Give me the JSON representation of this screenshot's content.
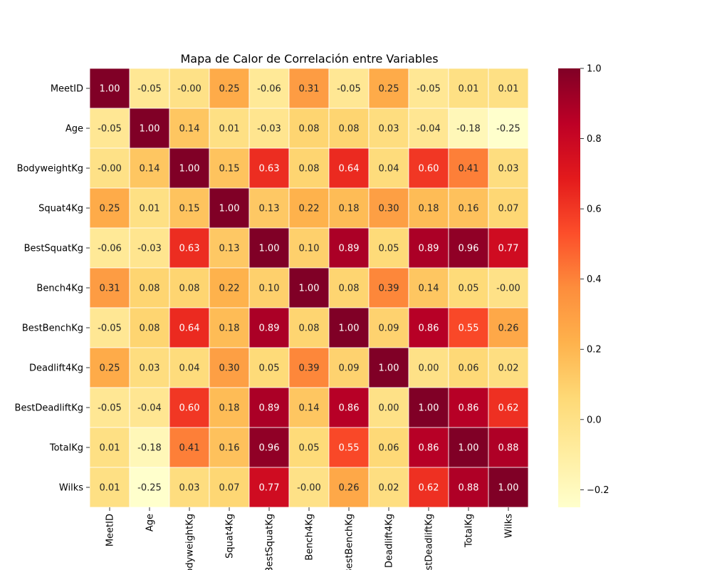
{
  "chart_data": {
    "type": "heatmap",
    "title": "Mapa de Calor de Correlación entre Variables",
    "xlabel": "",
    "ylabel": "",
    "row_labels": [
      "MeetID",
      "Age",
      "BodyweightKg",
      "Squat4Kg",
      "BestSquatKg",
      "Bench4Kg",
      "BestBenchKg",
      "Deadlift4Kg",
      "BestDeadliftKg",
      "TotalKg",
      "Wilks"
    ],
    "col_labels": [
      "MeetID",
      "Age",
      "BodyweightKg",
      "Squat4Kg",
      "BestSquatKg",
      "Bench4Kg",
      "BestBenchKg",
      "Deadlift4Kg",
      "BestDeadliftKg",
      "TotalKg",
      "Wilks"
    ],
    "values": [
      [
        1.0,
        -0.05,
        -0.0,
        0.25,
        -0.06,
        0.31,
        -0.05,
        0.25,
        -0.05,
        0.01,
        0.01
      ],
      [
        -0.05,
        1.0,
        0.14,
        0.01,
        -0.03,
        0.08,
        0.08,
        0.03,
        -0.04,
        -0.18,
        -0.25
      ],
      [
        -0.0,
        0.14,
        1.0,
        0.15,
        0.63,
        0.08,
        0.64,
        0.04,
        0.6,
        0.41,
        0.03
      ],
      [
        0.25,
        0.01,
        0.15,
        1.0,
        0.13,
        0.22,
        0.18,
        0.3,
        0.18,
        0.16,
        0.07
      ],
      [
        -0.06,
        -0.03,
        0.63,
        0.13,
        1.0,
        0.1,
        0.89,
        0.05,
        0.89,
        0.96,
        0.77
      ],
      [
        0.31,
        0.08,
        0.08,
        0.22,
        0.1,
        1.0,
        0.08,
        0.39,
        0.14,
        0.05,
        -0.0
      ],
      [
        -0.05,
        0.08,
        0.64,
        0.18,
        0.89,
        0.08,
        1.0,
        0.09,
        0.86,
        0.55,
        0.26
      ],
      [
        0.25,
        0.03,
        0.04,
        0.3,
        0.05,
        0.39,
        0.09,
        1.0,
        0.0,
        0.06,
        0.02
      ],
      [
        -0.05,
        -0.04,
        0.6,
        0.18,
        0.89,
        0.14,
        0.86,
        0.0,
        1.0,
        0.86,
        0.62
      ],
      [
        0.01,
        -0.18,
        0.41,
        0.16,
        0.96,
        0.05,
        0.55,
        0.06,
        0.86,
        1.0,
        0.88
      ],
      [
        0.01,
        -0.25,
        0.03,
        0.07,
        0.77,
        -0.0,
        0.26,
        0.02,
        0.62,
        0.88,
        1.0
      ]
    ],
    "value_format": "0.00",
    "colormap": "YlOrRd",
    "colorbar": {
      "range": [
        -0.25,
        1.0
      ],
      "ticks": [
        -0.2,
        0.0,
        0.2,
        0.4,
        0.6,
        0.8,
        1.0
      ],
      "tick_labels": [
        "−0.2",
        "0.0",
        "0.2",
        "0.4",
        "0.6",
        "0.8",
        "1.0"
      ]
    },
    "colormap_stops": [
      "#ffffcc",
      "#ffeda0",
      "#fed976",
      "#feb24c",
      "#fd8d3c",
      "#fc4e2a",
      "#e31a1c",
      "#bd0026",
      "#800026"
    ],
    "cell_border_color": "#ffffff",
    "grid": false
  }
}
